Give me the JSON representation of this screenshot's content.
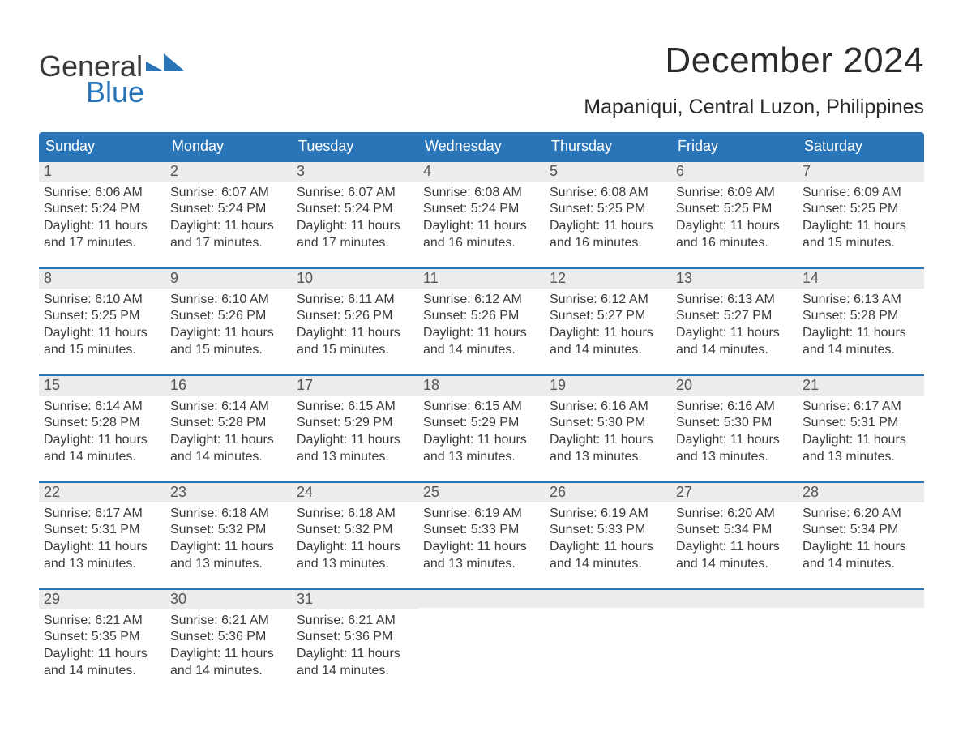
{
  "logo": {
    "word1": "General",
    "word2": "Blue"
  },
  "title": "December 2024",
  "location": "Mapaniqui, Central Luzon, Philippines",
  "colors": {
    "header_bg": "#2a74b8",
    "header_text": "#ffffff",
    "daybar_bg": "#ececec",
    "daybar_border": "#2a74b8",
    "body_text": "#3a3a3a",
    "logo_blue": "#2a74b8"
  },
  "weekdays": [
    "Sunday",
    "Monday",
    "Tuesday",
    "Wednesday",
    "Thursday",
    "Friday",
    "Saturday"
  ],
  "weeks": [
    [
      {
        "num": "1",
        "sunrise": "Sunrise: 6:06 AM",
        "sunset": "Sunset: 5:24 PM",
        "day1": "Daylight: 11 hours",
        "day2": "and 17 minutes."
      },
      {
        "num": "2",
        "sunrise": "Sunrise: 6:07 AM",
        "sunset": "Sunset: 5:24 PM",
        "day1": "Daylight: 11 hours",
        "day2": "and 17 minutes."
      },
      {
        "num": "3",
        "sunrise": "Sunrise: 6:07 AM",
        "sunset": "Sunset: 5:24 PM",
        "day1": "Daylight: 11 hours",
        "day2": "and 17 minutes."
      },
      {
        "num": "4",
        "sunrise": "Sunrise: 6:08 AM",
        "sunset": "Sunset: 5:24 PM",
        "day1": "Daylight: 11 hours",
        "day2": "and 16 minutes."
      },
      {
        "num": "5",
        "sunrise": "Sunrise: 6:08 AM",
        "sunset": "Sunset: 5:25 PM",
        "day1": "Daylight: 11 hours",
        "day2": "and 16 minutes."
      },
      {
        "num": "6",
        "sunrise": "Sunrise: 6:09 AM",
        "sunset": "Sunset: 5:25 PM",
        "day1": "Daylight: 11 hours",
        "day2": "and 16 minutes."
      },
      {
        "num": "7",
        "sunrise": "Sunrise: 6:09 AM",
        "sunset": "Sunset: 5:25 PM",
        "day1": "Daylight: 11 hours",
        "day2": "and 15 minutes."
      }
    ],
    [
      {
        "num": "8",
        "sunrise": "Sunrise: 6:10 AM",
        "sunset": "Sunset: 5:25 PM",
        "day1": "Daylight: 11 hours",
        "day2": "and 15 minutes."
      },
      {
        "num": "9",
        "sunrise": "Sunrise: 6:10 AM",
        "sunset": "Sunset: 5:26 PM",
        "day1": "Daylight: 11 hours",
        "day2": "and 15 minutes."
      },
      {
        "num": "10",
        "sunrise": "Sunrise: 6:11 AM",
        "sunset": "Sunset: 5:26 PM",
        "day1": "Daylight: 11 hours",
        "day2": "and 15 minutes."
      },
      {
        "num": "11",
        "sunrise": "Sunrise: 6:12 AM",
        "sunset": "Sunset: 5:26 PM",
        "day1": "Daylight: 11 hours",
        "day2": "and 14 minutes."
      },
      {
        "num": "12",
        "sunrise": "Sunrise: 6:12 AM",
        "sunset": "Sunset: 5:27 PM",
        "day1": "Daylight: 11 hours",
        "day2": "and 14 minutes."
      },
      {
        "num": "13",
        "sunrise": "Sunrise: 6:13 AM",
        "sunset": "Sunset: 5:27 PM",
        "day1": "Daylight: 11 hours",
        "day2": "and 14 minutes."
      },
      {
        "num": "14",
        "sunrise": "Sunrise: 6:13 AM",
        "sunset": "Sunset: 5:28 PM",
        "day1": "Daylight: 11 hours",
        "day2": "and 14 minutes."
      }
    ],
    [
      {
        "num": "15",
        "sunrise": "Sunrise: 6:14 AM",
        "sunset": "Sunset: 5:28 PM",
        "day1": "Daylight: 11 hours",
        "day2": "and 14 minutes."
      },
      {
        "num": "16",
        "sunrise": "Sunrise: 6:14 AM",
        "sunset": "Sunset: 5:28 PM",
        "day1": "Daylight: 11 hours",
        "day2": "and 14 minutes."
      },
      {
        "num": "17",
        "sunrise": "Sunrise: 6:15 AM",
        "sunset": "Sunset: 5:29 PM",
        "day1": "Daylight: 11 hours",
        "day2": "and 13 minutes."
      },
      {
        "num": "18",
        "sunrise": "Sunrise: 6:15 AM",
        "sunset": "Sunset: 5:29 PM",
        "day1": "Daylight: 11 hours",
        "day2": "and 13 minutes."
      },
      {
        "num": "19",
        "sunrise": "Sunrise: 6:16 AM",
        "sunset": "Sunset: 5:30 PM",
        "day1": "Daylight: 11 hours",
        "day2": "and 13 minutes."
      },
      {
        "num": "20",
        "sunrise": "Sunrise: 6:16 AM",
        "sunset": "Sunset: 5:30 PM",
        "day1": "Daylight: 11 hours",
        "day2": "and 13 minutes."
      },
      {
        "num": "21",
        "sunrise": "Sunrise: 6:17 AM",
        "sunset": "Sunset: 5:31 PM",
        "day1": "Daylight: 11 hours",
        "day2": "and 13 minutes."
      }
    ],
    [
      {
        "num": "22",
        "sunrise": "Sunrise: 6:17 AM",
        "sunset": "Sunset: 5:31 PM",
        "day1": "Daylight: 11 hours",
        "day2": "and 13 minutes."
      },
      {
        "num": "23",
        "sunrise": "Sunrise: 6:18 AM",
        "sunset": "Sunset: 5:32 PM",
        "day1": "Daylight: 11 hours",
        "day2": "and 13 minutes."
      },
      {
        "num": "24",
        "sunrise": "Sunrise: 6:18 AM",
        "sunset": "Sunset: 5:32 PM",
        "day1": "Daylight: 11 hours",
        "day2": "and 13 minutes."
      },
      {
        "num": "25",
        "sunrise": "Sunrise: 6:19 AM",
        "sunset": "Sunset: 5:33 PM",
        "day1": "Daylight: 11 hours",
        "day2": "and 13 minutes."
      },
      {
        "num": "26",
        "sunrise": "Sunrise: 6:19 AM",
        "sunset": "Sunset: 5:33 PM",
        "day1": "Daylight: 11 hours",
        "day2": "and 14 minutes."
      },
      {
        "num": "27",
        "sunrise": "Sunrise: 6:20 AM",
        "sunset": "Sunset: 5:34 PM",
        "day1": "Daylight: 11 hours",
        "day2": "and 14 minutes."
      },
      {
        "num": "28",
        "sunrise": "Sunrise: 6:20 AM",
        "sunset": "Sunset: 5:34 PM",
        "day1": "Daylight: 11 hours",
        "day2": "and 14 minutes."
      }
    ],
    [
      {
        "num": "29",
        "sunrise": "Sunrise: 6:21 AM",
        "sunset": "Sunset: 5:35 PM",
        "day1": "Daylight: 11 hours",
        "day2": "and 14 minutes."
      },
      {
        "num": "30",
        "sunrise": "Sunrise: 6:21 AM",
        "sunset": "Sunset: 5:36 PM",
        "day1": "Daylight: 11 hours",
        "day2": "and 14 minutes."
      },
      {
        "num": "31",
        "sunrise": "Sunrise: 6:21 AM",
        "sunset": "Sunset: 5:36 PM",
        "day1": "Daylight: 11 hours",
        "day2": "and 14 minutes."
      },
      null,
      null,
      null,
      null
    ]
  ]
}
